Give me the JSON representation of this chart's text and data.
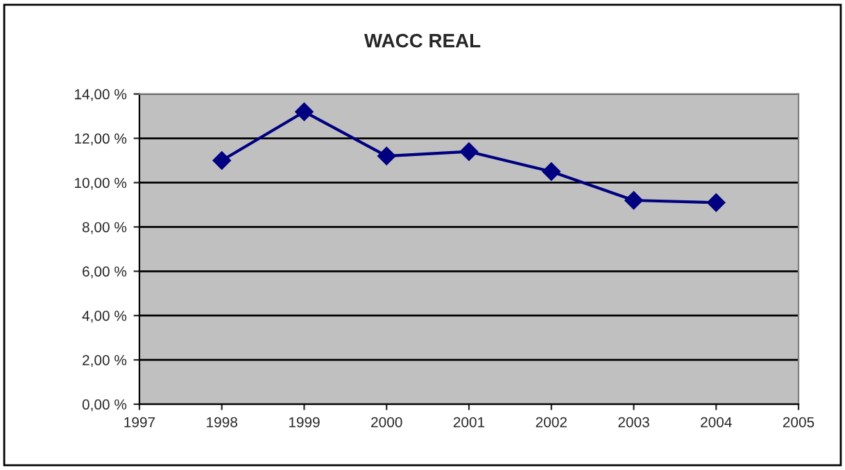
{
  "chart_data": {
    "type": "line",
    "title": "WACC REAL",
    "x": [
      1998,
      1999,
      2000,
      2001,
      2002,
      2003,
      2004
    ],
    "series": [
      {
        "color": "#000080",
        "values": [
          11.0,
          13.2,
          11.2,
          11.4,
          10.5,
          9.2,
          9.1
        ]
      }
    ],
    "xlim": [
      1997,
      2005
    ],
    "xticks": [
      1997,
      1998,
      1999,
      2000,
      2001,
      2002,
      2003,
      2004,
      2005
    ],
    "ylim": [
      0,
      14
    ],
    "yticks": [
      {
        "value": 0,
        "label": "0,00 %"
      },
      {
        "value": 2,
        "label": "2,00 %"
      },
      {
        "value": 4,
        "label": "4,00 %"
      },
      {
        "value": 6,
        "label": "6,00 %"
      },
      {
        "value": 8,
        "label": "8,00 %"
      },
      {
        "value": 10,
        "label": "10,00 %"
      },
      {
        "value": 12,
        "label": "12,00 %"
      },
      {
        "value": 14,
        "label": "14,00 %"
      }
    ],
    "grid": "y",
    "marker": "diamond",
    "line_style": "solid",
    "legend": false
  }
}
